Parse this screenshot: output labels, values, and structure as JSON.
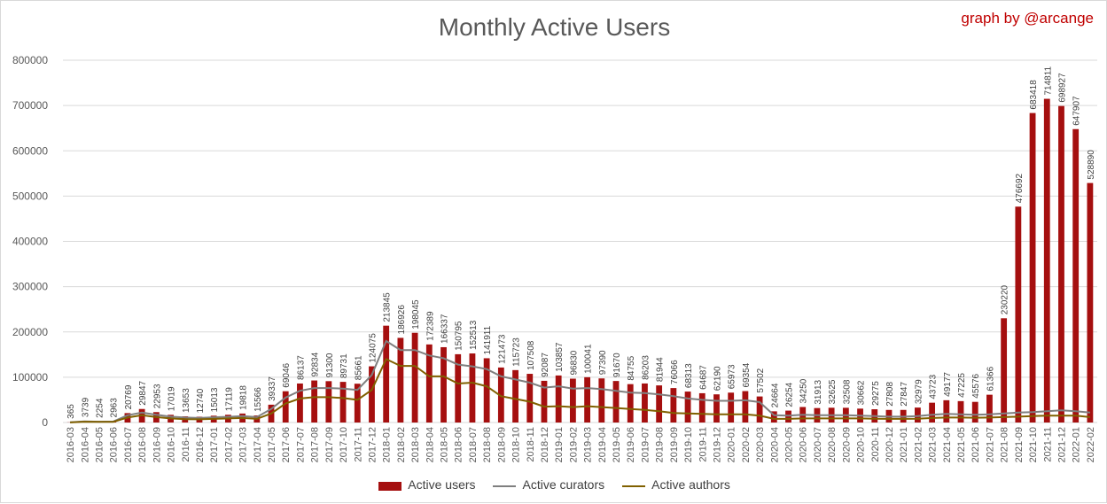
{
  "title": "Monthly Active Users",
  "credit": "graph by @arcange",
  "colors": {
    "users": "#a50f0f",
    "curators": "#7f7f7f",
    "authors": "#806000",
    "grid": "#d9d9d9",
    "text": "#595959"
  },
  "chart_data": {
    "type": "bar",
    "title": "Monthly Active Users",
    "ylim": [
      0,
      800000
    ],
    "yticks": [
      0,
      100000,
      200000,
      300000,
      400000,
      500000,
      600000,
      700000,
      800000
    ],
    "grid": true,
    "legend_position": "bottom",
    "categories": [
      "2016-03",
      "2016-04",
      "2016-05",
      "2016-06",
      "2016-07",
      "2016-08",
      "2016-09",
      "2016-10",
      "2016-11",
      "2016-12",
      "2017-01",
      "2017-02",
      "2017-03",
      "2017-04",
      "2017-05",
      "2017-06",
      "2017-07",
      "2017-08",
      "2017-09",
      "2017-10",
      "2017-11",
      "2017-12",
      "2018-01",
      "2018-02",
      "2018-03",
      "2018-04",
      "2018-05",
      "2018-06",
      "2018-07",
      "2018-08",
      "2018-09",
      "2018-10",
      "2018-11",
      "2018-12",
      "2019-01",
      "2019-02",
      "2019-03",
      "2019-04",
      "2019-05",
      "2019-06",
      "2019-07",
      "2019-08",
      "2019-09",
      "2019-10",
      "2019-11",
      "2019-12",
      "2020-01",
      "2020-02",
      "2020-03",
      "2020-04",
      "2020-05",
      "2020-06",
      "2020-07",
      "2020-08",
      "2020-09",
      "2020-10",
      "2020-11",
      "2020-12",
      "2021-01",
      "2021-02",
      "2021-03",
      "2021-04",
      "2021-05",
      "2021-06",
      "2021-07",
      "2021-08",
      "2021-09",
      "2021-10",
      "2021-11",
      "2021-12",
      "2022-01",
      "2022-02"
    ],
    "series": [
      {
        "name": "Active users",
        "kind": "bar",
        "values": [
          365,
          3739,
          2254,
          2963,
          20769,
          29847,
          22953,
          17019,
          13653,
          12740,
          15013,
          17119,
          19818,
          15566,
          39337,
          69046,
          86137,
          92834,
          91300,
          89731,
          85661,
          124075,
          213845,
          186926,
          198045,
          172389,
          166337,
          150795,
          152513,
          141911,
          121473,
          115723,
          107508,
          92087,
          103857,
          96830,
          100041,
          97390,
          91670,
          84755,
          86203,
          81944,
          76066,
          68313,
          64687,
          62190,
          65973,
          69354,
          57502,
          24664,
          26254,
          34250,
          31913,
          32625,
          32508,
          30662,
          29275,
          27808,
          27847,
          32979,
          43723,
          49177,
          47225,
          45576,
          61366,
          230220,
          476692,
          683418,
          714811,
          698927,
          647907,
          528890
        ]
      },
      {
        "name": "Active curators",
        "kind": "line",
        "values": [
          300,
          2500,
          1800,
          2200,
          16000,
          22000,
          17000,
          13000,
          11000,
          10000,
          11500,
          12500,
          14000,
          12000,
          30000,
          55000,
          70000,
          76000,
          76000,
          75000,
          72000,
          105000,
          180000,
          160000,
          160000,
          148000,
          142000,
          128000,
          124000,
          118000,
          102000,
          95000,
          88000,
          77000,
          80000,
          75000,
          76000,
          74000,
          70000,
          66000,
          65000,
          62000,
          58000,
          53000,
          50000,
          48000,
          48000,
          49000,
          45000,
          16000,
          15000,
          17000,
          16000,
          16000,
          16000,
          15000,
          14000,
          13000,
          13000,
          14000,
          17000,
          19000,
          18000,
          17000,
          18000,
          20000,
          22000,
          23000,
          25000,
          27000,
          25000,
          22000
        ]
      },
      {
        "name": "Active authors",
        "kind": "line",
        "values": [
          200,
          1800,
          1300,
          1500,
          11000,
          16000,
          12000,
          9000,
          7500,
          7000,
          8000,
          9000,
          10000,
          8000,
          20000,
          42000,
          53000,
          56000,
          56000,
          54000,
          50000,
          72000,
          140000,
          125000,
          125000,
          102000,
          102000,
          86000,
          88000,
          80000,
          58000,
          52000,
          46000,
          35000,
          36000,
          34000,
          36000,
          34000,
          32000,
          30000,
          28000,
          25000,
          21000,
          20000,
          19000,
          18000,
          18000,
          18000,
          15000,
          8000,
          8000,
          9000,
          9000,
          9000,
          9000,
          9000,
          8500,
          8000,
          8000,
          8500,
          10000,
          11000,
          11000,
          10500,
          11000,
          12000,
          13000,
          14000,
          15000,
          15000,
          15000,
          12000
        ]
      }
    ]
  }
}
